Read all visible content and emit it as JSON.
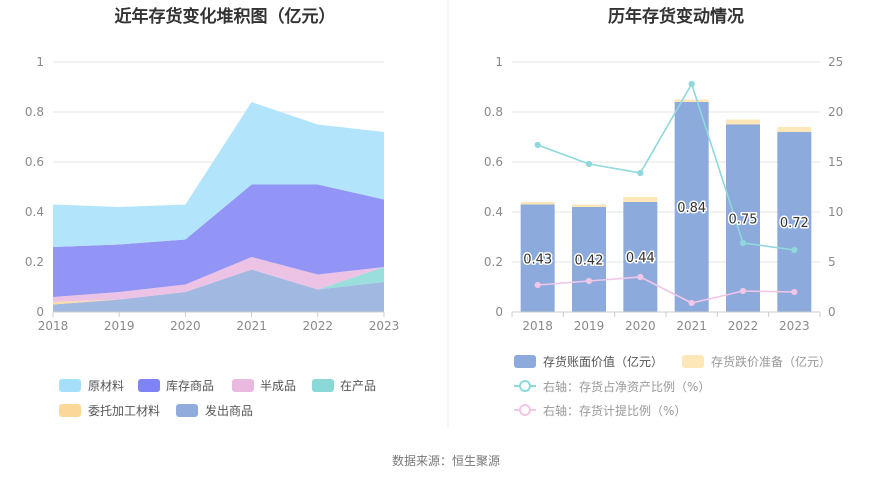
{
  "left_chart": {
    "title": "近年存货变化堆积图（亿元）",
    "legend": [
      {
        "label": "原材料",
        "color": "#a5e0fa"
      },
      {
        "label": "库存商品",
        "color": "#8083f5"
      },
      {
        "label": "半成品",
        "color": "#eab9e0"
      },
      {
        "label": "在产品",
        "color": "#8ad8d8"
      },
      {
        "label": "委托加工材料",
        "color": "#fcd79a"
      },
      {
        "label": "发出商品",
        "color": "#91acdc"
      }
    ]
  },
  "right_chart": {
    "title": "历年存货变动情况",
    "legend": [
      {
        "label": "存货账面价值（亿元）",
        "color": "#8caadb"
      },
      {
        "label": "存货跌价准备（亿元）",
        "color": "#fde6b8"
      },
      {
        "label": "右轴：存货占净资产比例（%）",
        "color": "#8fd8dc"
      },
      {
        "label": "右轴：存货计提比例（%）",
        "color": "#f2c6e6"
      }
    ]
  },
  "source": "数据来源：恒生聚源",
  "chart_data": [
    {
      "type": "area",
      "stacked": true,
      "title": "近年存货变化堆积图（亿元）",
      "x": [
        "2018",
        "2019",
        "2020",
        "2021",
        "2022",
        "2023"
      ],
      "ylim": [
        0,
        1
      ],
      "yticks": [
        "0",
        "0.2",
        "0.4",
        "0.6",
        "0.8",
        "1"
      ],
      "grid": true,
      "legend_position": "bottom",
      "series": [
        {
          "name": "发出商品",
          "color": "#91acdc",
          "values": [
            0.03,
            0.05,
            0.08,
            0.17,
            0.09,
            0.12
          ]
        },
        {
          "name": "委托加工材料",
          "color": "#fcd79a",
          "values": [
            0.01,
            0.0,
            0.0,
            0.0,
            0.0,
            0.0
          ]
        },
        {
          "name": "在产品",
          "color": "#8ad8d8",
          "values": [
            0.0,
            0.0,
            0.0,
            0.0,
            0.0,
            0.06
          ]
        },
        {
          "name": "半成品",
          "color": "#eab9e0",
          "values": [
            0.02,
            0.03,
            0.03,
            0.05,
            0.06,
            0.0
          ]
        },
        {
          "name": "库存商品",
          "color": "#8083f5",
          "values": [
            0.2,
            0.19,
            0.18,
            0.29,
            0.36,
            0.27
          ]
        },
        {
          "name": "原材料",
          "color": "#a5e0fa",
          "values": [
            0.17,
            0.15,
            0.14,
            0.33,
            0.24,
            0.27
          ]
        }
      ]
    },
    {
      "type": "bar",
      "title": "历年存货变动情况",
      "x": [
        "2018",
        "2019",
        "2020",
        "2021",
        "2022",
        "2023"
      ],
      "ylim": [
        0,
        1
      ],
      "yticks": [
        "0",
        "0.2",
        "0.4",
        "0.6",
        "0.8",
        "1"
      ],
      "y2lim": [
        0,
        25
      ],
      "y2ticks": [
        "0",
        "5",
        "10",
        "15",
        "20",
        "25"
      ],
      "grid": true,
      "legend_position": "bottom",
      "series": [
        {
          "name": "存货账面价值（亿元）",
          "kind": "bar",
          "stack": "inv",
          "axis": "left",
          "color": "#8caadb",
          "values": [
            0.43,
            0.42,
            0.44,
            0.84,
            0.75,
            0.72
          ],
          "labels": [
            "0.43",
            "0.42",
            "0.44",
            "0.84",
            "0.75",
            "0.72"
          ]
        },
        {
          "name": "存货跌价准备（亿元）",
          "kind": "bar",
          "stack": "inv",
          "axis": "left",
          "color": "#fde6b8",
          "values": [
            0.01,
            0.01,
            0.02,
            0.01,
            0.02,
            0.02
          ]
        },
        {
          "name": "右轴：存货占净资产比例（%）",
          "kind": "line",
          "axis": "right",
          "color": "#8fd8dc",
          "values": [
            16.7,
            14.8,
            13.9,
            22.8,
            6.9,
            6.2
          ]
        },
        {
          "name": "右轴：存货计提比例（%）",
          "kind": "line",
          "axis": "right",
          "color": "#f2c6e6",
          "values": [
            2.7,
            3.1,
            3.5,
            0.9,
            2.1,
            2.0
          ]
        }
      ]
    }
  ]
}
